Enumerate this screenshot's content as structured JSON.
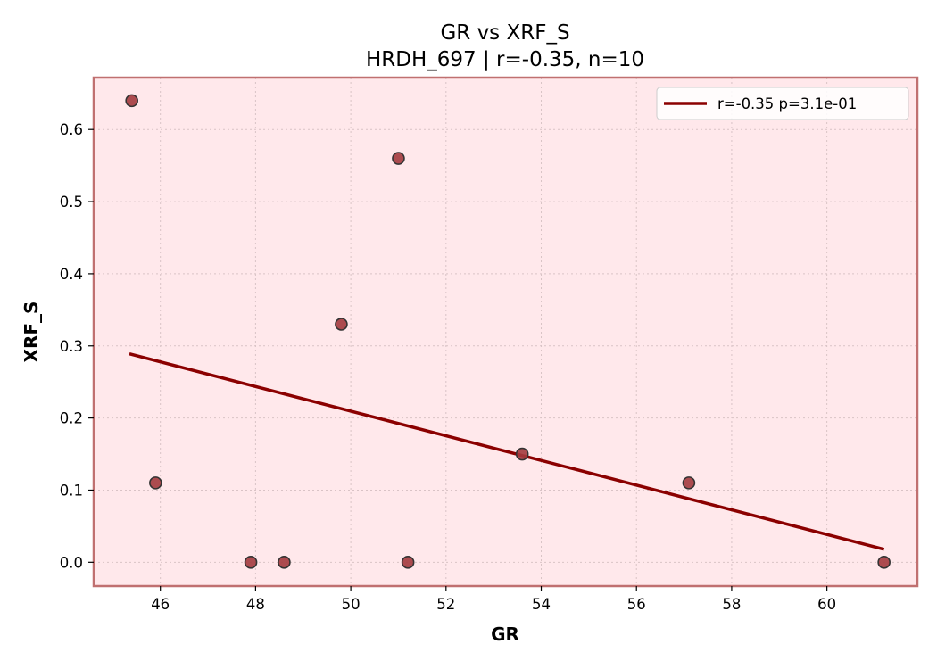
{
  "chart_data": {
    "type": "scatter",
    "title": "GR vs XRF_S",
    "subtitle": "HRDH_697 | r=-0.35, n=10",
    "xlabel": "GR",
    "ylabel": "XRF_S",
    "xlim": [
      44.6,
      61.9
    ],
    "ylim": [
      -0.033,
      0.672
    ],
    "xticks": [
      46,
      48,
      50,
      52,
      54,
      56,
      58,
      60
    ],
    "xtick_labels": [
      "46",
      "48",
      "50",
      "52",
      "54",
      "56",
      "58",
      "60"
    ],
    "yticks": [
      0.0,
      0.1,
      0.2,
      0.3,
      0.4,
      0.5,
      0.6
    ],
    "ytick_labels": [
      "0.0",
      "0.1",
      "0.2",
      "0.3",
      "0.4",
      "0.5",
      "0.6"
    ],
    "grid": true,
    "legend_position": "top-right",
    "points": [
      {
        "x": 45.4,
        "y": 0.64
      },
      {
        "x": 45.9,
        "y": 0.11
      },
      {
        "x": 47.9,
        "y": 0.0
      },
      {
        "x": 48.6,
        "y": 0.0
      },
      {
        "x": 49.8,
        "y": 0.33
      },
      {
        "x": 51.0,
        "y": 0.56
      },
      {
        "x": 51.2,
        "y": 0.0
      },
      {
        "x": 53.6,
        "y": 0.15
      },
      {
        "x": 57.1,
        "y": 0.11
      },
      {
        "x": 61.2,
        "y": 0.0
      }
    ],
    "fit_line": {
      "label": "r=-0.35  p=3.1e-01",
      "x": [
        45.35,
        61.2
      ],
      "y": [
        0.289,
        0.018
      ]
    },
    "colors": {
      "plot_background": "#ffe8eb",
      "frame": "#c07070",
      "point_fill": "#a33a3e",
      "point_edge": "#333333",
      "fit_line": "#8b0000"
    }
  }
}
